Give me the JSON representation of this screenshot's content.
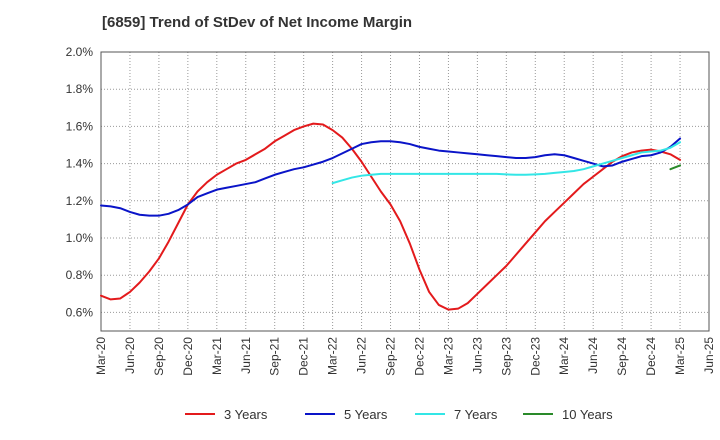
{
  "chart_data": {
    "type": "line",
    "title": "[6859]  Trend of StDev of Net Income Margin",
    "xlabel": "",
    "ylabel": "",
    "ylim": [
      0.5,
      2.0
    ],
    "yticks": [
      {
        "v": 2.0,
        "label": "2.0%"
      },
      {
        "v": 1.8,
        "label": "1.8%"
      },
      {
        "v": 1.6,
        "label": "1.6%"
      },
      {
        "v": 1.4,
        "label": "1.4%"
      },
      {
        "v": 1.2,
        "label": "1.2%"
      },
      {
        "v": 1.0,
        "label": "1.0%"
      },
      {
        "v": 0.8,
        "label": "0.8%"
      },
      {
        "v": 0.6,
        "label": "0.6%"
      }
    ],
    "xticks": [
      "Mar-20",
      "Jun-20",
      "Sep-20",
      "Dec-20",
      "Mar-21",
      "Jun-21",
      "Sep-21",
      "Dec-21",
      "Mar-22",
      "Jun-22",
      "Sep-22",
      "Dec-22",
      "Mar-23",
      "Jun-23",
      "Sep-23",
      "Dec-23",
      "Mar-24",
      "Jun-24",
      "Sep-24",
      "Dec-24",
      "Mar-25",
      "Jun-25"
    ],
    "grid": true,
    "legend_position": "bottom",
    "series": [
      {
        "name": "3 Years",
        "color": "#e31a1c",
        "points": [
          [
            "Mar-20",
            0.69
          ],
          [
            "Apr-20",
            0.67
          ],
          [
            "May-20",
            0.675
          ],
          [
            "Jun-20",
            0.71
          ],
          [
            "Jul-20",
            0.76
          ],
          [
            "Aug-20",
            0.82
          ],
          [
            "Sep-20",
            0.89
          ],
          [
            "Oct-20",
            0.98
          ],
          [
            "Nov-20",
            1.08
          ],
          [
            "Dec-20",
            1.18
          ],
          [
            "Jan-21",
            1.25
          ],
          [
            "Feb-21",
            1.3
          ],
          [
            "Mar-21",
            1.34
          ],
          [
            "Apr-21",
            1.37
          ],
          [
            "May-21",
            1.4
          ],
          [
            "Jun-21",
            1.42
          ],
          [
            "Jul-21",
            1.45
          ],
          [
            "Aug-21",
            1.48
          ],
          [
            "Sep-21",
            1.52
          ],
          [
            "Oct-21",
            1.55
          ],
          [
            "Nov-21",
            1.58
          ],
          [
            "Dec-21",
            1.6
          ],
          [
            "Jan-22",
            1.615
          ],
          [
            "Feb-22",
            1.61
          ],
          [
            "Mar-22",
            1.58
          ],
          [
            "Apr-22",
            1.54
          ],
          [
            "May-22",
            1.48
          ],
          [
            "Jun-22",
            1.41
          ],
          [
            "Jul-22",
            1.33
          ],
          [
            "Aug-22",
            1.25
          ],
          [
            "Sep-22",
            1.18
          ],
          [
            "Oct-22",
            1.09
          ],
          [
            "Nov-22",
            0.97
          ],
          [
            "Dec-22",
            0.83
          ],
          [
            "Jan-23",
            0.71
          ],
          [
            "Feb-23",
            0.64
          ],
          [
            "Mar-23",
            0.615
          ],
          [
            "Apr-23",
            0.62
          ],
          [
            "May-23",
            0.65
          ],
          [
            "Jun-23",
            0.7
          ],
          [
            "Jul-23",
            0.75
          ],
          [
            "Aug-23",
            0.8
          ],
          [
            "Sep-23",
            0.85
          ],
          [
            "Oct-23",
            0.91
          ],
          [
            "Nov-23",
            0.97
          ],
          [
            "Dec-23",
            1.03
          ],
          [
            "Jan-24",
            1.09
          ],
          [
            "Feb-24",
            1.14
          ],
          [
            "Mar-24",
            1.19
          ],
          [
            "Apr-24",
            1.24
          ],
          [
            "May-24",
            1.29
          ],
          [
            "Jun-24",
            1.33
          ],
          [
            "Jul-24",
            1.37
          ],
          [
            "Aug-24",
            1.41
          ],
          [
            "Sep-24",
            1.44
          ],
          [
            "Oct-24",
            1.46
          ],
          [
            "Nov-24",
            1.47
          ],
          [
            "Dec-24",
            1.475
          ],
          [
            "Jan-25",
            1.465
          ],
          [
            "Feb-25",
            1.45
          ],
          [
            "Mar-25",
            1.42
          ]
        ]
      },
      {
        "name": "5 Years",
        "color": "#0a14c8",
        "points": [
          [
            "Mar-20",
            1.175
          ],
          [
            "Apr-20",
            1.17
          ],
          [
            "May-20",
            1.16
          ],
          [
            "Jun-20",
            1.14
          ],
          [
            "Jul-20",
            1.125
          ],
          [
            "Aug-20",
            1.12
          ],
          [
            "Sep-20",
            1.12
          ],
          [
            "Oct-20",
            1.13
          ],
          [
            "Nov-20",
            1.15
          ],
          [
            "Dec-20",
            1.18
          ],
          [
            "Jan-21",
            1.22
          ],
          [
            "Feb-21",
            1.24
          ],
          [
            "Mar-21",
            1.26
          ],
          [
            "Apr-21",
            1.27
          ],
          [
            "May-21",
            1.28
          ],
          [
            "Jun-21",
            1.29
          ],
          [
            "Jul-21",
            1.3
          ],
          [
            "Aug-21",
            1.32
          ],
          [
            "Sep-21",
            1.34
          ],
          [
            "Oct-21",
            1.355
          ],
          [
            "Nov-21",
            1.37
          ],
          [
            "Dec-21",
            1.38
          ],
          [
            "Jan-22",
            1.395
          ],
          [
            "Feb-22",
            1.41
          ],
          [
            "Mar-22",
            1.43
          ],
          [
            "Apr-22",
            1.455
          ],
          [
            "May-22",
            1.48
          ],
          [
            "Jun-22",
            1.505
          ],
          [
            "Jul-22",
            1.515
          ],
          [
            "Aug-22",
            1.52
          ],
          [
            "Sep-22",
            1.52
          ],
          [
            "Oct-22",
            1.515
          ],
          [
            "Nov-22",
            1.505
          ],
          [
            "Dec-22",
            1.49
          ],
          [
            "Jan-23",
            1.48
          ],
          [
            "Feb-23",
            1.47
          ],
          [
            "Mar-23",
            1.465
          ],
          [
            "Apr-23",
            1.46
          ],
          [
            "May-23",
            1.455
          ],
          [
            "Jun-23",
            1.45
          ],
          [
            "Jul-23",
            1.445
          ],
          [
            "Aug-23",
            1.44
          ],
          [
            "Sep-23",
            1.435
          ],
          [
            "Oct-23",
            1.43
          ],
          [
            "Nov-23",
            1.43
          ],
          [
            "Dec-23",
            1.435
          ],
          [
            "Jan-24",
            1.445
          ],
          [
            "Feb-24",
            1.45
          ],
          [
            "Mar-24",
            1.445
          ],
          [
            "Apr-24",
            1.43
          ],
          [
            "May-24",
            1.415
          ],
          [
            "Jun-24",
            1.4
          ],
          [
            "Jul-24",
            1.385
          ],
          [
            "Aug-24",
            1.39
          ],
          [
            "Sep-24",
            1.41
          ],
          [
            "Oct-24",
            1.425
          ],
          [
            "Nov-24",
            1.44
          ],
          [
            "Dec-24",
            1.445
          ],
          [
            "Jan-25",
            1.46
          ],
          [
            "Feb-25",
            1.49
          ],
          [
            "Mar-25",
            1.535
          ]
        ]
      },
      {
        "name": "7 Years",
        "color": "#33e6e6",
        "points": [
          [
            "Mar-22",
            1.295
          ],
          [
            "Apr-22",
            1.31
          ],
          [
            "May-22",
            1.325
          ],
          [
            "Jun-22",
            1.335
          ],
          [
            "Jul-22",
            1.34
          ],
          [
            "Aug-22",
            1.345
          ],
          [
            "Sep-22",
            1.345
          ],
          [
            "Oct-22",
            1.345
          ],
          [
            "Nov-22",
            1.345
          ],
          [
            "Dec-22",
            1.345
          ],
          [
            "Jan-23",
            1.345
          ],
          [
            "Feb-23",
            1.345
          ],
          [
            "Mar-23",
            1.345
          ],
          [
            "Apr-23",
            1.345
          ],
          [
            "May-23",
            1.345
          ],
          [
            "Jun-23",
            1.345
          ],
          [
            "Jul-23",
            1.345
          ],
          [
            "Aug-23",
            1.345
          ],
          [
            "Sep-23",
            1.342
          ],
          [
            "Oct-23",
            1.34
          ],
          [
            "Nov-23",
            1.34
          ],
          [
            "Dec-23",
            1.342
          ],
          [
            "Jan-24",
            1.345
          ],
          [
            "Feb-24",
            1.35
          ],
          [
            "Mar-24",
            1.355
          ],
          [
            "Apr-24",
            1.36
          ],
          [
            "May-24",
            1.37
          ],
          [
            "Jun-24",
            1.385
          ],
          [
            "Jul-24",
            1.4
          ],
          [
            "Aug-24",
            1.415
          ],
          [
            "Sep-24",
            1.43
          ],
          [
            "Oct-24",
            1.445
          ],
          [
            "Nov-24",
            1.46
          ],
          [
            "Dec-24",
            1.465
          ],
          [
            "Jan-25",
            1.47
          ],
          [
            "Feb-25",
            1.485
          ],
          [
            "Mar-25",
            1.515
          ]
        ]
      },
      {
        "name": "10 Years",
        "color": "#2a8a2a",
        "points": [
          [
            "Feb-25",
            1.37
          ],
          [
            "Mar-25",
            1.39
          ]
        ]
      }
    ]
  }
}
